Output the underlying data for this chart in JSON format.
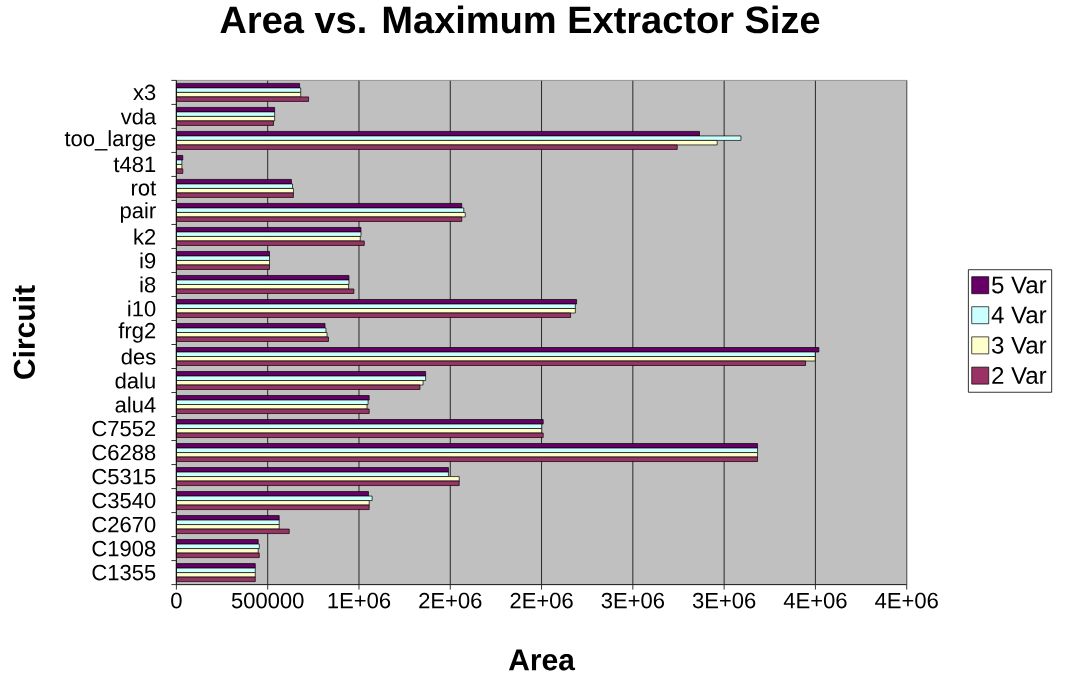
{
  "chart_data": {
    "type": "bar",
    "orientation": "horizontal",
    "title": "Area vs. Maximum Extractor Size",
    "xlabel": "Area",
    "ylabel": "Circuit",
    "categories": [
      "x3",
      "vda",
      "too_large",
      "t481",
      "rot",
      "pair",
      "k2",
      "i9",
      "i8",
      "i10",
      "frg2",
      "des",
      "dalu",
      "alu4",
      "C7552",
      "C6288",
      "C5315",
      "C3540",
      "C2670",
      "C1908",
      "C1355"
    ],
    "series": [
      {
        "name": "5 Var",
        "color": "#660066",
        "values": [
          675000,
          538000,
          2865000,
          35000,
          630000,
          1563000,
          1011000,
          510000,
          945000,
          2192000,
          814000,
          3519000,
          1365000,
          1056000,
          2009000,
          3183000,
          1490000,
          1052000,
          563000,
          448000,
          432000
        ]
      },
      {
        "name": "4 Var",
        "color": "#ccffff",
        "values": [
          681000,
          538000,
          3092000,
          30000,
          636000,
          1574000,
          1011000,
          510000,
          945000,
          2185000,
          819000,
          3499000,
          1365000,
          1050000,
          2001000,
          3183000,
          1490000,
          1072000,
          563000,
          454000,
          432000
        ]
      },
      {
        "name": "3 Var",
        "color": "#ffffcc",
        "values": [
          681000,
          538000,
          2962000,
          30000,
          641000,
          1582000,
          1007000,
          510000,
          943000,
          2185000,
          825000,
          3499000,
          1351000,
          1044000,
          2001000,
          3183000,
          1549000,
          1056000,
          563000,
          448000,
          432000
        ]
      },
      {
        "name": "2 Var",
        "color": "#993366",
        "values": [
          724000,
          532000,
          2743000,
          35000,
          641000,
          1563000,
          1029000,
          510000,
          972000,
          2159000,
          833000,
          3446000,
          1334000,
          1056000,
          2009000,
          3183000,
          1549000,
          1056000,
          618000,
          454000,
          432000
        ]
      }
    ],
    "xlim": [
      0,
      4000000
    ],
    "xticks": [
      0,
      500000,
      {
        "value": 1000000,
        "label": "1E+06"
      },
      {
        "value": 1500000,
        "label": "2E+06"
      },
      {
        "value": 2000000,
        "label": "2E+06"
      },
      {
        "value": 2500000,
        "label": "3E+06"
      },
      {
        "value": 3000000,
        "label": "3E+06"
      },
      {
        "value": 3500000,
        "label": "4E+06"
      },
      {
        "value": 4000000,
        "label": "4E+06"
      }
    ],
    "grid": "x",
    "legend": "right"
  }
}
